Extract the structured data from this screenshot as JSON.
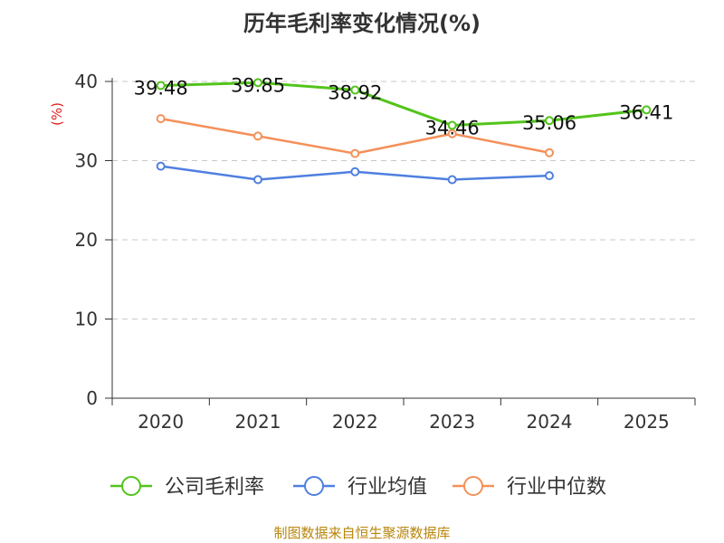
{
  "chart_data": {
    "type": "line",
    "title": "历年毛利率变化情况(%)",
    "ylabel": "(%)",
    "xlabel": "",
    "categories": [
      "2020",
      "2021",
      "2022",
      "2023",
      "2024",
      "2025"
    ],
    "ylim": [
      0,
      40
    ],
    "yticks": [
      0,
      10,
      20,
      30,
      40
    ],
    "grid": true,
    "legend": "bottom",
    "series": [
      {
        "name": "公司毛利率",
        "color": "#52c41a",
        "values": [
          39.48,
          39.85,
          38.92,
          34.46,
          35.06,
          36.41
        ],
        "labels": [
          "39.48",
          "39.85",
          "38.92",
          "34.46",
          "35.06",
          "36.41"
        ]
      },
      {
        "name": "行业均值",
        "color": "#4f7fe0",
        "values": [
          29.3,
          27.6,
          28.6,
          27.6,
          28.1,
          null
        ]
      },
      {
        "name": "行业中位数",
        "color": "#f4905a",
        "values": [
          35.3,
          33.1,
          30.9,
          33.4,
          31.0,
          null
        ]
      }
    ]
  },
  "footer": "制图数据来自恒生聚源数据库"
}
